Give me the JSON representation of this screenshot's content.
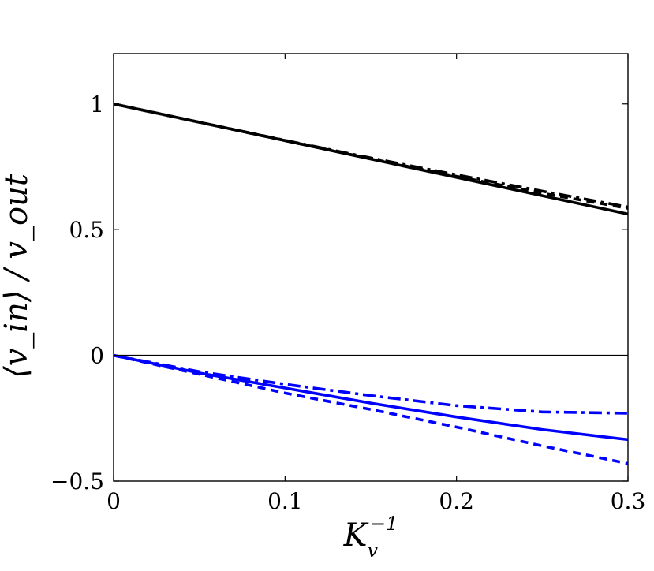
{
  "chart_data": {
    "type": "line",
    "xlabel": "K_v^{-1}",
    "ylabel": "⟨v_in⟩ / v_out",
    "xlim": [
      0,
      0.3
    ],
    "ylim": [
      -0.5,
      1.2
    ],
    "xticks": [
      0,
      0.1,
      0.2,
      0.3
    ],
    "xtick_labels": [
      "0",
      "0.1",
      "0.2",
      "0.3"
    ],
    "yticks": [
      -0.5,
      0,
      0.5,
      1
    ],
    "ytick_labels": [
      "−0.5",
      "0",
      "0.5",
      "1"
    ],
    "zero_line": true,
    "grid": false,
    "legend": "none",
    "series": [
      {
        "color": "#000000",
        "dash": "solid",
        "x": [
          0,
          0.05,
          0.1,
          0.15,
          0.2,
          0.25,
          0.3
        ],
        "y": [
          1.0,
          0.927,
          0.854,
          0.781,
          0.708,
          0.635,
          0.562
        ]
      },
      {
        "color": "#000000",
        "dash": "dashed",
        "x": [
          0,
          0.05,
          0.1,
          0.15,
          0.2,
          0.25,
          0.3
        ],
        "y": [
          1.0,
          0.927,
          0.854,
          0.782,
          0.712,
          0.645,
          0.585
        ]
      },
      {
        "color": "#000000",
        "dash": "dashdot",
        "x": [
          0,
          0.05,
          0.1,
          0.15,
          0.2,
          0.25,
          0.3
        ],
        "y": [
          1.0,
          0.927,
          0.855,
          0.785,
          0.718,
          0.653,
          0.59
        ]
      },
      {
        "color": "#0000ff",
        "dash": "solid",
        "x": [
          0,
          0.05,
          0.1,
          0.15,
          0.2,
          0.25,
          0.3
        ],
        "y": [
          0,
          -0.07,
          -0.13,
          -0.19,
          -0.245,
          -0.295,
          -0.335
        ]
      },
      {
        "color": "#0000ff",
        "dash": "dashed",
        "x": [
          0,
          0.05,
          0.1,
          0.15,
          0.2,
          0.25,
          0.3
        ],
        "y": [
          0,
          -0.075,
          -0.15,
          -0.215,
          -0.285,
          -0.36,
          -0.43
        ]
      },
      {
        "color": "#0000ff",
        "dash": "dashdot",
        "x": [
          0,
          0.05,
          0.1,
          0.15,
          0.2,
          0.25,
          0.3
        ],
        "y": [
          0,
          -0.065,
          -0.115,
          -0.16,
          -0.2,
          -0.225,
          -0.23
        ]
      }
    ]
  }
}
